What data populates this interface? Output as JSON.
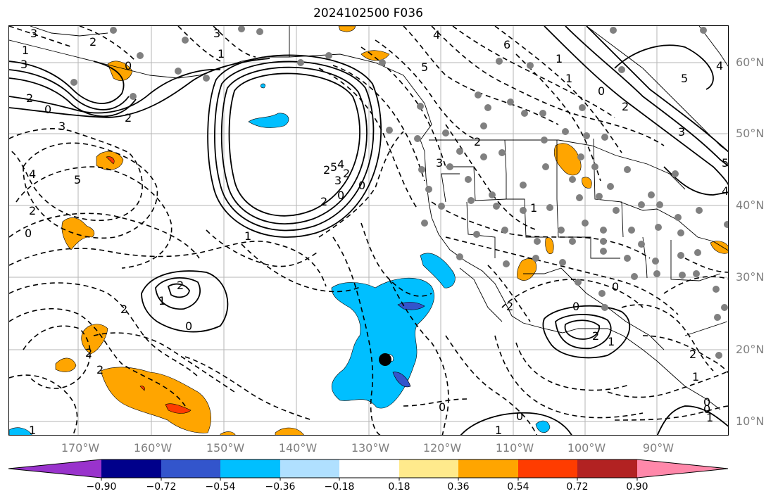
{
  "title": "2024102500 F036",
  "lat_labels": [
    "60°N",
    "50°N",
    "40°N",
    "30°N",
    "20°N",
    "10°N"
  ],
  "lon_labels": [
    "170°W",
    "160°W",
    "150°W",
    "140°W",
    "130°W",
    "120°W",
    "110°W",
    "100°W",
    "90°W"
  ],
  "contour_labels": [
    "3",
    "2",
    "1",
    "3",
    "2",
    "0",
    "3",
    "2",
    "4",
    "5",
    "2",
    "0",
    "3",
    "0",
    "1",
    "2",
    "5",
    "4",
    "3",
    "2",
    "2",
    "0",
    "1",
    "2",
    "0",
    "2",
    "0",
    "1",
    "0",
    "6",
    "5",
    "4",
    "3",
    "2",
    "0",
    "1",
    "3",
    "4",
    "5",
    "1",
    "0",
    "2",
    "1",
    "0",
    "2",
    "2",
    "0",
    "2",
    "1",
    "2",
    "1",
    "0",
    "1",
    "0",
    "1",
    "4",
    "5",
    "2",
    "1"
  ],
  "colorbar": {
    "ticks": [
      "−0.90",
      "−0.72",
      "−0.54",
      "−0.36",
      "−0.18",
      "0.18",
      "0.36",
      "0.54",
      "0.72",
      "0.90"
    ],
    "colors": [
      "#9933cc",
      "#00008b",
      "#3355cc",
      "#00bfff",
      "#b0e0ff",
      "#ffffff",
      "#ffea8c",
      "#ffa500",
      "#ff3c00",
      "#b22222",
      "#ff88aa"
    ]
  }
}
